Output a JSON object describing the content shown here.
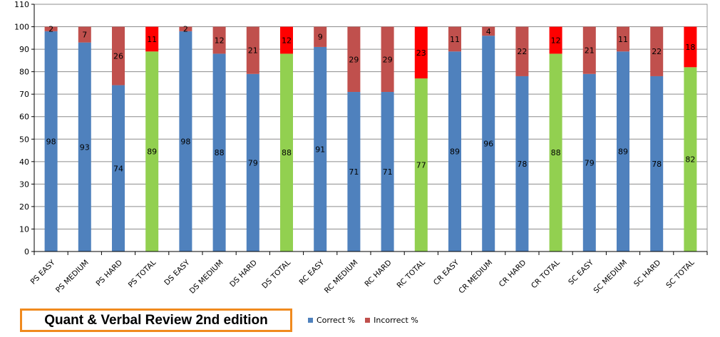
{
  "chart_data": {
    "type": "bar",
    "stacked": true,
    "title": "Quant & Verbal Review 2nd edition",
    "categories": [
      "PS EASY",
      "PS MEDIUM",
      "PS HARD",
      "PS TOTAL",
      "DS EASY",
      "DS MEDIUM",
      "DS HARD",
      "DS TOTAL",
      "RC EASY",
      "RC MEDIUM",
      "RC HARD",
      "RC TOTAL",
      "CR EASY",
      "CR MEDIUM",
      "CR HARD",
      "CR TOTAL",
      "SC EASY",
      "SC MEDIUM",
      "SC HARD",
      "SC TOTAL"
    ],
    "series": [
      {
        "name": "Correct %",
        "values": [
          98,
          93,
          74,
          89,
          98,
          88,
          79,
          88,
          91,
          71,
          71,
          77,
          89,
          96,
          78,
          88,
          79,
          89,
          78,
          82
        ]
      },
      {
        "name": "Incorrect %",
        "values": [
          2,
          7,
          26,
          11,
          2,
          12,
          21,
          12,
          9,
          29,
          29,
          23,
          11,
          4,
          22,
          12,
          21,
          11,
          22,
          18
        ]
      }
    ],
    "ylim": [
      0,
      110
    ],
    "yticks": [
      0,
      10,
      20,
      30,
      40,
      50,
      60,
      70,
      80,
      90,
      100,
      110
    ],
    "grid": true,
    "legend_position": "bottom",
    "colors": {
      "correct": "#4f81bd",
      "incorrect": "#c0504d",
      "total_correct": "#92d050",
      "total_incorrect": "#ff0000",
      "grid": "#8c8c8c",
      "title_border": "#f08a1e"
    }
  }
}
